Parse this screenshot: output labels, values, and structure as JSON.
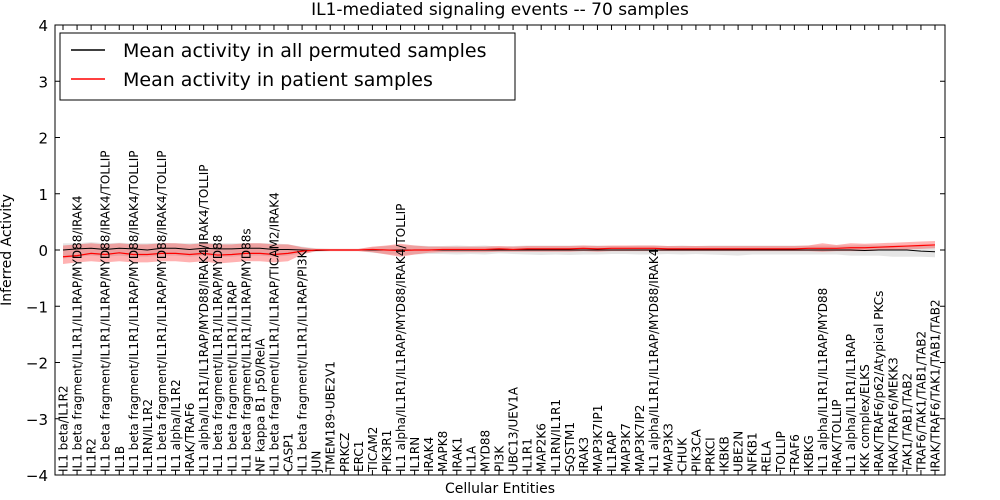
{
  "chart_data": {
    "type": "line",
    "title": "IL1-mediated signaling events -- 70 samples",
    "xlabel": "Cellular Entities",
    "ylabel": "Inferred Activity",
    "ylim": [
      -4,
      4
    ],
    "yticks": [
      -4,
      -3,
      -2,
      -1,
      0,
      1,
      2,
      3,
      4
    ],
    "ytick_labels": [
      "−4",
      "−3",
      "−2",
      "−1",
      "0",
      "1",
      "2",
      "3",
      "4"
    ],
    "legend_position": "top-left",
    "legend": [
      {
        "label": "Mean activity in all permuted samples",
        "color": "#000000"
      },
      {
        "label": "Mean activity in patient samples",
        "color": "#ff0000"
      }
    ],
    "categories": [
      "IL1 beta/IL1R2",
      "IL1 beta fragment/IL1R1/IL1RAP/MYD88/IRAK4",
      "IL1R2",
      "IL1 beta fragment/IL1R1/IL1RAP/MYD88/IRAK4/TOLLIP",
      "IL1B",
      "IL1 beta fragment/IL1R1/IL1RAP/MYD88/IRAK4/TOLLIP",
      "IL1RN/IL1R2",
      "IL1 beta fragment/IL1R1/IL1RAP/MYD88/IRAK4/TOLLIP",
      "IL1 alpha/IL1R2",
      "IRAK/TRAF6",
      "IL1 alpha/IL1R1/IL1RAP/MYD88/IRAK4/IRAK4/TOLLIP",
      "IL1 beta fragment/IL1R1/IL1RAP/MYD88",
      "IL1 beta fragment/IL1R1/IL1RAP",
      "IL1 beta fragment/IL1R1/IL1RAP/MYD88s",
      "NF kappa B1 p50/RelA",
      "IL1 beta fragment/IL1R1/IL1RAP/TICAM2/IRAK4",
      "CASP1",
      "IL1 beta fragment/IL1R1/IL1RAP/PI3K",
      "JUN",
      "TMEM189-UBE2V1",
      "PRKCZ",
      "ERC1",
      "TICAM2",
      "PIK3R1",
      "IL1 alpha/IL1R1/IL1RAP/MYD88/IRAK4/TOLLIP",
      "IL1RN",
      "IRAK4",
      "MAPK8",
      "IRAK1",
      "IL1A",
      "MYD88",
      "PI3K",
      "UBC13/UEV1A",
      "IL1R1",
      "MAP2K6",
      "IL1RN/IL1R1",
      "SQSTM1",
      "IRAK3",
      "MAP3K7IP1",
      "IL1RAP",
      "MAP3K7",
      "MAP3K7IP2",
      "IL1 alpha/IL1R1/IL1RAP/MYD88/IRAK4",
      "MAP3K3",
      "CHUK",
      "PIK3CA",
      "PRKCI",
      "IKBKB",
      "UBE2N",
      "NFKB1",
      "RELA",
      "TOLLIP",
      "TRAF6",
      "IKBKG",
      "IL1 alpha/IL1R1/IL1RAP/MYD88",
      "IRAK/TOLLIP",
      "IL1 alpha/IL1R1/IL1RAP",
      "IKK complex/ELKS",
      "IRAK/TRAF6/p62/Atypical PKCs",
      "IRAK/TRAF6/MEKK3",
      "TAK1/TAB1/TAB2",
      "TRAF6/TAK1/TAB1/TAB2",
      "IRAK/TRAF6/TAK1/TAB1/TAB2"
    ],
    "series": [
      {
        "name": "Mean activity in all permuted samples",
        "values": [
          0.0,
          0.02,
          0.03,
          0.01,
          0.03,
          0.02,
          0.0,
          0.03,
          0.03,
          0.01,
          0.03,
          0.02,
          0.02,
          0.03,
          0.03,
          0.01,
          0.01,
          0.0,
          -0.01,
          0.0,
          0.0,
          0.0,
          0.0,
          0.0,
          0.0,
          0.0,
          0.0,
          0.0,
          0.0,
          0.0,
          0.0,
          0.0,
          0.0,
          0.0,
          0.0,
          0.0,
          0.0,
          0.0,
          0.0,
          0.0,
          0.0,
          0.0,
          0.0,
          0.0,
          0.0,
          0.0,
          0.0,
          0.0,
          0.0,
          0.0,
          0.0,
          0.0,
          0.0,
          0.0,
          0.0,
          0.0,
          0.0,
          -0.01,
          0.0,
          0.0,
          0.0,
          -0.02,
          -0.03
        ],
        "lower": [
          -0.15,
          -0.12,
          -0.1,
          -0.12,
          -0.1,
          -0.12,
          -0.12,
          -0.1,
          -0.1,
          -0.12,
          -0.1,
          -0.12,
          -0.12,
          -0.1,
          -0.1,
          -0.12,
          -0.1,
          -0.06,
          -0.03,
          -0.02,
          -0.02,
          -0.02,
          -0.05,
          -0.07,
          -0.09,
          -0.08,
          -0.07,
          -0.07,
          -0.08,
          -0.07,
          -0.08,
          -0.06,
          -0.07,
          -0.08,
          -0.09,
          -0.08,
          -0.09,
          -0.08,
          -0.08,
          -0.07,
          -0.07,
          -0.08,
          -0.08,
          -0.07,
          -0.08,
          -0.07,
          -0.08,
          -0.09,
          -0.1,
          -0.08,
          -0.08,
          -0.08,
          -0.08,
          -0.08,
          -0.08,
          -0.08,
          -0.1,
          -0.1,
          -0.1,
          -0.12,
          -0.12,
          -0.12,
          -0.13
        ],
        "upper": [
          0.12,
          0.12,
          0.14,
          0.12,
          0.13,
          0.12,
          0.12,
          0.13,
          0.12,
          0.12,
          0.13,
          0.12,
          0.12,
          0.12,
          0.12,
          0.12,
          0.1,
          0.06,
          0.03,
          0.02,
          0.02,
          0.02,
          0.05,
          0.07,
          0.08,
          0.08,
          0.07,
          0.07,
          0.08,
          0.07,
          0.08,
          0.06,
          0.07,
          0.08,
          0.08,
          0.08,
          0.08,
          0.08,
          0.08,
          0.07,
          0.07,
          0.08,
          0.08,
          0.07,
          0.08,
          0.07,
          0.08,
          0.08,
          0.08,
          0.08,
          0.08,
          0.08,
          0.08,
          0.08,
          0.08,
          0.08,
          0.08,
          0.09,
          0.08,
          0.08,
          0.08,
          0.07,
          0.07
        ],
        "color": "#000000",
        "band_color": "#cccccc"
      },
      {
        "name": "Mean activity in patient samples",
        "values": [
          -0.12,
          -0.1,
          -0.06,
          -0.08,
          -0.05,
          -0.08,
          -0.08,
          -0.06,
          -0.06,
          -0.08,
          -0.06,
          -0.09,
          -0.08,
          -0.06,
          -0.06,
          -0.08,
          -0.06,
          -0.02,
          0.0,
          0.0,
          0.0,
          0.0,
          0.01,
          0.0,
          -0.01,
          0.0,
          0.0,
          0.01,
          0.01,
          0.01,
          0.01,
          0.02,
          0.01,
          0.02,
          0.02,
          0.02,
          0.02,
          0.03,
          0.02,
          0.03,
          0.03,
          0.03,
          0.03,
          0.02,
          0.02,
          0.02,
          0.02,
          0.02,
          0.02,
          0.02,
          0.02,
          0.02,
          0.02,
          0.03,
          0.03,
          0.03,
          0.04,
          0.04,
          0.05,
          0.06,
          0.07,
          0.08,
          0.09
        ],
        "lower": [
          -0.25,
          -0.22,
          -0.2,
          -0.22,
          -0.2,
          -0.22,
          -0.22,
          -0.2,
          -0.2,
          -0.22,
          -0.2,
          -0.24,
          -0.22,
          -0.2,
          -0.2,
          -0.22,
          -0.2,
          -0.08,
          -0.02,
          -0.02,
          -0.02,
          -0.02,
          -0.04,
          -0.08,
          -0.12,
          -0.08,
          -0.05,
          -0.04,
          -0.04,
          -0.04,
          -0.04,
          -0.03,
          -0.03,
          -0.03,
          -0.03,
          -0.03,
          -0.03,
          -0.02,
          -0.03,
          -0.02,
          -0.02,
          -0.02,
          -0.02,
          -0.02,
          -0.02,
          -0.02,
          -0.02,
          -0.02,
          -0.02,
          -0.02,
          -0.02,
          -0.02,
          -0.02,
          -0.02,
          -0.03,
          -0.02,
          -0.02,
          -0.02,
          -0.01,
          0.0,
          0.01,
          0.02,
          0.03
        ],
        "upper": [
          0.08,
          0.1,
          0.12,
          0.1,
          0.12,
          0.1,
          0.1,
          0.12,
          0.12,
          0.1,
          0.12,
          0.1,
          0.1,
          0.12,
          0.12,
          0.1,
          0.1,
          0.05,
          0.02,
          0.02,
          0.02,
          0.02,
          0.06,
          0.08,
          0.11,
          0.08,
          0.06,
          0.06,
          0.06,
          0.06,
          0.06,
          0.07,
          0.06,
          0.07,
          0.07,
          0.07,
          0.07,
          0.08,
          0.07,
          0.08,
          0.08,
          0.08,
          0.08,
          0.07,
          0.07,
          0.07,
          0.07,
          0.07,
          0.07,
          0.07,
          0.07,
          0.07,
          0.07,
          0.08,
          0.12,
          0.09,
          0.12,
          0.11,
          0.12,
          0.13,
          0.14,
          0.15,
          0.16
        ],
        "color": "#ff0000",
        "band_color": "#ff0000"
      }
    ]
  }
}
